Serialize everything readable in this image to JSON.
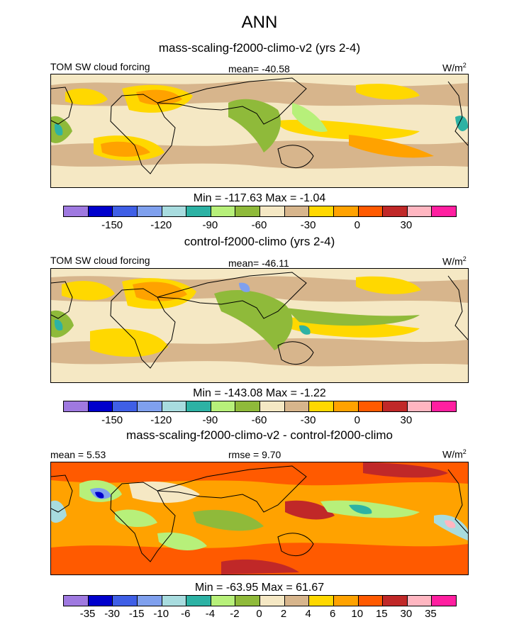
{
  "title": "ANN",
  "panels": [
    {
      "case": "mass-scaling-f2000-climo-v2 (yrs 2-4)",
      "variable": "TOM SW cloud forcing",
      "mean": "mean= -40.58",
      "units": "W/m",
      "units_sup": "2",
      "minmax": "Min = -117.63 Max =  -1.04",
      "colorbar_colors": [
        "#9f79e0",
        "#0000cc",
        "#3f5fe6",
        "#7fa0ee",
        "#a8dcdf",
        "#2db2a4",
        "#b7f07a",
        "#8fba3a",
        "#f5e8c4",
        "#d7b58c",
        "#ffd800",
        "#ffa200",
        "#ff5a00",
        "#c02828",
        "#ffb6c1",
        "#ff1fa0"
      ],
      "colorbar_labels": [
        "-150",
        "-120",
        "-90",
        "-60",
        "-30",
        "0",
        "30"
      ]
    },
    {
      "case": "control-f2000-climo (yrs 2-4)",
      "variable": "TOM SW cloud forcing",
      "mean": "mean= -46.11",
      "units": "W/m",
      "units_sup": "2",
      "minmax": "Min = -143.08 Max =  -1.22",
      "colorbar_colors": [
        "#9f79e0",
        "#0000cc",
        "#3f5fe6",
        "#7fa0ee",
        "#a8dcdf",
        "#2db2a4",
        "#b7f07a",
        "#8fba3a",
        "#f5e8c4",
        "#d7b58c",
        "#ffd800",
        "#ffa200",
        "#ff5a00",
        "#c02828",
        "#ffb6c1",
        "#ff1fa0"
      ],
      "colorbar_labels": [
        "-150",
        "-120",
        "-90",
        "-60",
        "-30",
        "0",
        "30"
      ]
    },
    {
      "case": "mass-scaling-f2000-climo-v2 - control-f2000-climo",
      "mean": "mean =   5.53",
      "rmse": "rmse =   9.70",
      "units": "W/m",
      "units_sup": "2",
      "minmax": "Min = -63.95 Max =  61.67",
      "colorbar_colors": [
        "#9f79e0",
        "#0000cc",
        "#3f5fe6",
        "#7fa0ee",
        "#a8dcdf",
        "#2db2a4",
        "#b7f07a",
        "#8fba3a",
        "#f5e8c4",
        "#d7b58c",
        "#ffd800",
        "#ffa200",
        "#ff5a00",
        "#c02828",
        "#ffb6c1",
        "#ff1fa0"
      ],
      "colorbar_labels": [
        "-35",
        "-30",
        "-15",
        "-10",
        "-6",
        "-4",
        "-2",
        "0",
        "2",
        "4",
        "6",
        "10",
        "15",
        "30",
        "35"
      ]
    }
  ]
}
